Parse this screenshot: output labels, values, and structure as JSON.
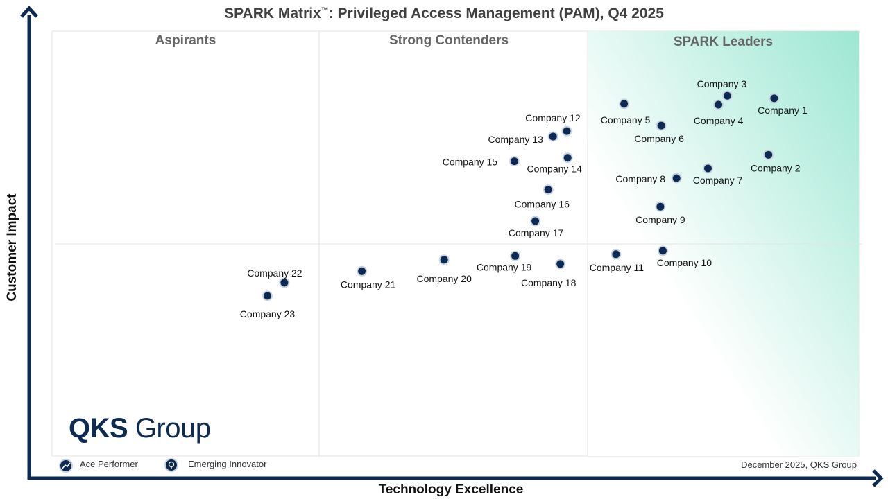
{
  "title_main": "SPARK Matrix",
  "title_tm": "™",
  "title_rest": ": Privileged Access Management (PAM), Q4 2025",
  "axes": {
    "x": "Technology Excellence",
    "y": "Customer Impact"
  },
  "quadrants": {
    "left": "Aspirants",
    "middle": "Strong Contenders",
    "right": "SPARK Leaders"
  },
  "legend": {
    "ace": "Ace Performer",
    "emerging": "Emerging Innovator"
  },
  "credit": "December  2025, QKS Group",
  "logo": {
    "bold": "QKS",
    "regular": "Group"
  },
  "colors": {
    "axis": "#0d2a52",
    "point": "#0d2a52",
    "leader_gradient": "#9ce7d2",
    "quad_text": "#666666"
  },
  "chart_data": {
    "type": "scatter",
    "title": "SPARK Matrix™: Privileged Access Management (PAM), Q4 2025",
    "xlabel": "Technology Excellence",
    "ylabel": "Customer Impact",
    "points": [
      {
        "name": "Company 1",
        "x": 89.5,
        "y": 84.2
      },
      {
        "name": "Company 2",
        "x": 88.8,
        "y": 70.9
      },
      {
        "name": "Company 3",
        "x": 83.7,
        "y": 84.8
      },
      {
        "name": "Company 4",
        "x": 82.6,
        "y": 82.7
      },
      {
        "name": "Company 5",
        "x": 70.9,
        "y": 82.9
      },
      {
        "name": "Company 6",
        "x": 75.5,
        "y": 77.8
      },
      {
        "name": "Company 7",
        "x": 81.3,
        "y": 67.7
      },
      {
        "name": "Company 8",
        "x": 77.4,
        "y": 65.4
      },
      {
        "name": "Company 9",
        "x": 75.4,
        "y": 58.7
      },
      {
        "name": "Company 10",
        "x": 75.7,
        "y": 48.3
      },
      {
        "name": "Company 11",
        "x": 69.9,
        "y": 47.5
      },
      {
        "name": "Company 12",
        "x": 63.8,
        "y": 76.5
      },
      {
        "name": "Company 13",
        "x": 62.1,
        "y": 75.2
      },
      {
        "name": "Company 14",
        "x": 63.9,
        "y": 70.2
      },
      {
        "name": "Company 15",
        "x": 57.3,
        "y": 69.4
      },
      {
        "name": "Company 16",
        "x": 61.5,
        "y": 62.7
      },
      {
        "name": "Company 17",
        "x": 59.9,
        "y": 55.3
      },
      {
        "name": "Company 18",
        "x": 63.0,
        "y": 45.2
      },
      {
        "name": "Company 19",
        "x": 57.4,
        "y": 47.1
      },
      {
        "name": "Company 20",
        "x": 48.6,
        "y": 46.2
      },
      {
        "name": "Company 21",
        "x": 38.4,
        "y": 43.5
      },
      {
        "name": "Company 22",
        "x": 28.8,
        "y": 40.8
      },
      {
        "name": "Company 23",
        "x": 26.7,
        "y": 37.7
      }
    ]
  }
}
